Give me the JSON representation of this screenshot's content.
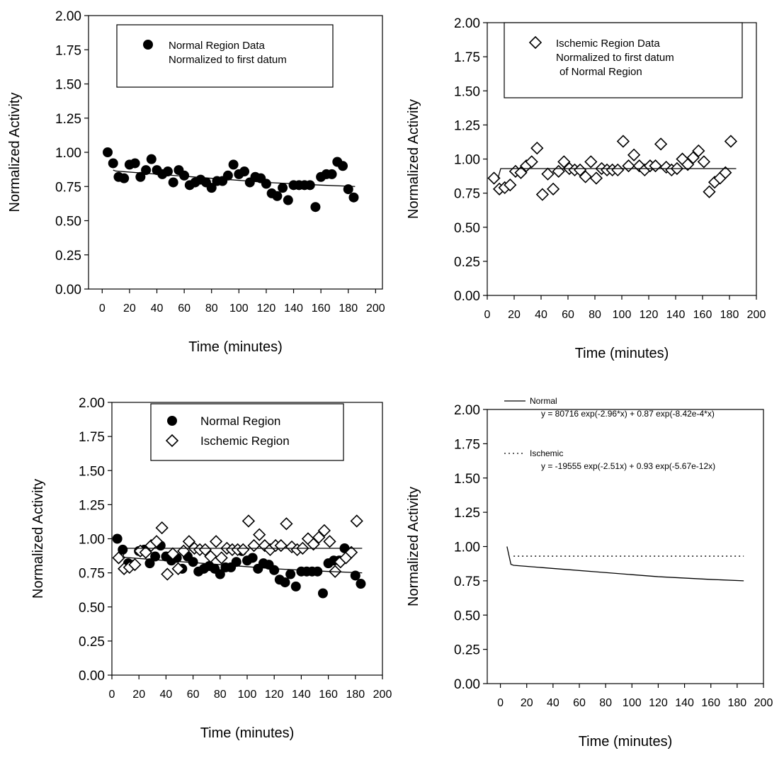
{
  "chart_data": [
    {
      "type": "scatter",
      "ylabel": "Normalized Activity",
      "xlabel": "Time (minutes)",
      "xlim": [
        -10,
        205
      ],
      "ylim": [
        0,
        2
      ],
      "xticks": [
        0,
        20,
        40,
        60,
        80,
        100,
        120,
        140,
        160,
        180,
        200
      ],
      "yticks": [
        {
          "value": 0,
          "label": "0.00"
        },
        {
          "value": 0.25,
          "label": "0.25"
        },
        {
          "value": 0.5,
          "label": "0.50"
        },
        {
          "value": 0.75,
          "label": "0.75"
        },
        {
          "value": 1,
          "label": "1.00"
        },
        {
          "value": 1.25,
          "label": "1.25"
        },
        {
          "value": 1.5,
          "label": "1.50"
        },
        {
          "value": 1.75,
          "label": "1.75"
        },
        {
          "value": 2,
          "label": "2.00"
        }
      ],
      "legend_frame": true,
      "series": [
        {
          "name": [
            "Normal Region Data",
            "Normalized to first datum"
          ],
          "marker": "circle",
          "color": "#000000",
          "x": [
            4,
            8,
            12,
            16,
            20,
            24,
            28,
            32,
            36,
            40,
            44,
            48,
            52,
            56,
            60,
            64,
            68,
            72,
            76,
            80,
            84,
            88,
            92,
            96,
            100,
            104,
            108,
            112,
            116,
            120,
            124,
            128,
            132,
            136,
            140,
            144,
            148,
            152,
            156,
            160,
            164,
            168,
            172,
            176,
            180,
            184
          ],
          "values": [
            1.0,
            0.92,
            0.82,
            0.81,
            0.91,
            0.92,
            0.82,
            0.87,
            0.95,
            0.87,
            0.84,
            0.86,
            0.78,
            0.87,
            0.83,
            0.76,
            0.78,
            0.8,
            0.78,
            0.74,
            0.79,
            0.79,
            0.83,
            0.91,
            0.84,
            0.86,
            0.78,
            0.82,
            0.81,
            0.77,
            0.7,
            0.68,
            0.74,
            0.65,
            0.76,
            0.76,
            0.76,
            0.76,
            0.6,
            0.82,
            0.84,
            0.84,
            0.93,
            0.9,
            0.73,
            0.67
          ]
        },
        {
          "marker": "line",
          "color": "#000000",
          "x": [
            8,
            10,
            40,
            80,
            120,
            160,
            185
          ],
          "values": [
            0.87,
            0.863,
            0.84,
            0.81,
            0.78,
            0.76,
            0.75
          ]
        }
      ]
    },
    {
      "type": "scatter",
      "ylabel": "Normalized Activity",
      "xlabel": "Time (minutes)",
      "xlim": [
        0,
        200
      ],
      "ylim": [
        0,
        2
      ],
      "xticks": [
        0,
        20,
        40,
        60,
        80,
        100,
        120,
        140,
        160,
        180,
        200
      ],
      "yticks": [
        {
          "value": 0,
          "label": "0.00"
        },
        {
          "value": 0.25,
          "label": "0.25"
        },
        {
          "value": 0.5,
          "label": "0.50"
        },
        {
          "value": 0.75,
          "label": "0.75"
        },
        {
          "value": 1,
          "label": "1.00"
        },
        {
          "value": 1.25,
          "label": "1.25"
        },
        {
          "value": 1.5,
          "label": "1.50"
        },
        {
          "value": 1.75,
          "label": "1.75"
        },
        {
          "value": 2,
          "label": "2.00"
        }
      ],
      "legend_frame": true,
      "series": [
        {
          "name": [
            "Ischemic Region Data",
            "Normalized to first datum",
            "of Normal Region"
          ],
          "marker": "diamond",
          "color": "#000000",
          "x": [
            5,
            9,
            13,
            17,
            21,
            25,
            29,
            33,
            37,
            41,
            45,
            49,
            53,
            57,
            61,
            65,
            69,
            73,
            77,
            81,
            85,
            89,
            93,
            97,
            101,
            105,
            109,
            113,
            117,
            121,
            125,
            129,
            133,
            137,
            141,
            145,
            149,
            153,
            157,
            161,
            165,
            169,
            173,
            177,
            181
          ],
          "values": [
            0.86,
            0.78,
            0.79,
            0.81,
            0.91,
            0.9,
            0.95,
            0.98,
            1.08,
            0.74,
            0.89,
            0.78,
            0.91,
            0.98,
            0.93,
            0.92,
            0.92,
            0.87,
            0.98,
            0.86,
            0.93,
            0.92,
            0.92,
            0.92,
            1.13,
            0.95,
            1.03,
            0.95,
            0.92,
            0.95,
            0.95,
            1.11,
            0.94,
            0.92,
            0.93,
            1.0,
            0.96,
            1.01,
            1.06,
            0.98,
            0.76,
            0.83,
            0.86,
            0.9,
            1.13
          ]
        },
        {
          "marker": "line",
          "color": "#000000",
          "x": [
            8,
            10,
            185
          ],
          "values": [
            0.86,
            0.93,
            0.93
          ]
        }
      ]
    },
    {
      "type": "scatter",
      "ylabel": "Normalized Activity",
      "xlabel": "Time (minutes)",
      "xlim": [
        0,
        200
      ],
      "ylim": [
        0,
        2
      ],
      "xticks": [
        0,
        20,
        40,
        60,
        80,
        100,
        120,
        140,
        160,
        180,
        200
      ],
      "yticks": [
        {
          "value": 0,
          "label": "0.00"
        },
        {
          "value": 0.25,
          "label": "0.25"
        },
        {
          "value": 0.5,
          "label": "0.50"
        },
        {
          "value": 0.75,
          "label": "0.75"
        },
        {
          "value": 1,
          "label": "1.00"
        },
        {
          "value": 1.25,
          "label": "1.25"
        },
        {
          "value": 1.5,
          "label": "1.50"
        },
        {
          "value": 1.75,
          "label": "1.75"
        },
        {
          "value": 2,
          "label": "2.00"
        }
      ],
      "legend_frame": true,
      "series": [
        {
          "name": [
            "Normal Region"
          ],
          "marker": "circle",
          "color": "#000000",
          "x": [
            4,
            8,
            12,
            16,
            20,
            24,
            28,
            32,
            36,
            40,
            44,
            48,
            52,
            56,
            60,
            64,
            68,
            72,
            76,
            80,
            84,
            88,
            92,
            96,
            100,
            104,
            108,
            112,
            116,
            120,
            124,
            128,
            132,
            136,
            140,
            144,
            148,
            152,
            156,
            160,
            164,
            168,
            172,
            176,
            180,
            184
          ],
          "values": [
            1.0,
            0.92,
            0.82,
            0.81,
            0.91,
            0.92,
            0.82,
            0.87,
            0.95,
            0.87,
            0.84,
            0.86,
            0.78,
            0.87,
            0.83,
            0.76,
            0.78,
            0.8,
            0.78,
            0.74,
            0.79,
            0.79,
            0.83,
            0.91,
            0.84,
            0.86,
            0.78,
            0.82,
            0.81,
            0.77,
            0.7,
            0.68,
            0.74,
            0.65,
            0.76,
            0.76,
            0.76,
            0.76,
            0.6,
            0.82,
            0.84,
            0.84,
            0.93,
            0.9,
            0.73,
            0.67
          ]
        },
        {
          "name": [
            "Ischemic Region"
          ],
          "marker": "diamond",
          "color": "#000000",
          "x": [
            5,
            9,
            13,
            17,
            21,
            25,
            29,
            33,
            37,
            41,
            45,
            49,
            53,
            57,
            61,
            65,
            69,
            73,
            77,
            81,
            85,
            89,
            93,
            97,
            101,
            105,
            109,
            113,
            117,
            121,
            125,
            129,
            133,
            137,
            141,
            145,
            149,
            153,
            157,
            161,
            165,
            169,
            173,
            177,
            181
          ],
          "values": [
            0.86,
            0.78,
            0.79,
            0.81,
            0.91,
            0.9,
            0.95,
            0.98,
            1.08,
            0.74,
            0.89,
            0.78,
            0.91,
            0.98,
            0.93,
            0.92,
            0.92,
            0.87,
            0.98,
            0.86,
            0.93,
            0.92,
            0.92,
            0.92,
            1.13,
            0.95,
            1.03,
            0.95,
            0.92,
            0.95,
            0.95,
            1.11,
            0.94,
            0.92,
            0.93,
            1.0,
            0.96,
            1.01,
            1.06,
            0.98,
            0.76,
            0.83,
            0.86,
            0.9,
            1.13
          ]
        },
        {
          "marker": "line",
          "color": "#000000",
          "x": [
            8,
            10,
            40,
            80,
            120,
            160,
            185
          ],
          "values": [
            0.87,
            0.863,
            0.84,
            0.81,
            0.78,
            0.76,
            0.75
          ]
        },
        {
          "marker": "line",
          "color": "#000000",
          "x": [
            8,
            10,
            185
          ],
          "values": [
            0.86,
            0.93,
            0.93
          ]
        }
      ]
    },
    {
      "type": "line",
      "ylabel": "Normalized Activity",
      "xlabel": "Time (minutes)",
      "xlim": [
        -10,
        200
      ],
      "ylim": [
        0,
        2
      ],
      "xticks": [
        0,
        20,
        40,
        60,
        80,
        100,
        120,
        140,
        160,
        180,
        200
      ],
      "yticks": [
        {
          "value": 0,
          "label": "0.00"
        },
        {
          "value": 0.25,
          "label": "0.25"
        },
        {
          "value": 0.5,
          "label": "0.50"
        },
        {
          "value": 0.75,
          "label": "0.75"
        },
        {
          "value": 1,
          "label": "1.00"
        },
        {
          "value": 1.25,
          "label": "1.25"
        },
        {
          "value": 1.5,
          "label": "1.50"
        },
        {
          "value": 1.75,
          "label": "1.75"
        },
        {
          "value": 2,
          "label": "2.00"
        }
      ],
      "legend_frame": false,
      "series": [
        {
          "name": [
            "Normal",
            "y = 80716 exp(-2.96*x) + 0.87 exp(-8.42e-4*x)"
          ],
          "marker": "line",
          "color": "#000000",
          "x": [
            5,
            8,
            10,
            40,
            80,
            120,
            160,
            185
          ],
          "values": [
            1.0,
            0.87,
            0.863,
            0.84,
            0.81,
            0.78,
            0.76,
            0.75
          ]
        },
        {
          "name": [
            "Ischemic",
            "y = -19555 exp(-2.51x) + 0.93 exp(-5.67e-12x)"
          ],
          "marker": "dotted",
          "color": "#000000",
          "x": [
            10,
            185
          ],
          "values": [
            0.93,
            0.93
          ]
        }
      ]
    }
  ]
}
